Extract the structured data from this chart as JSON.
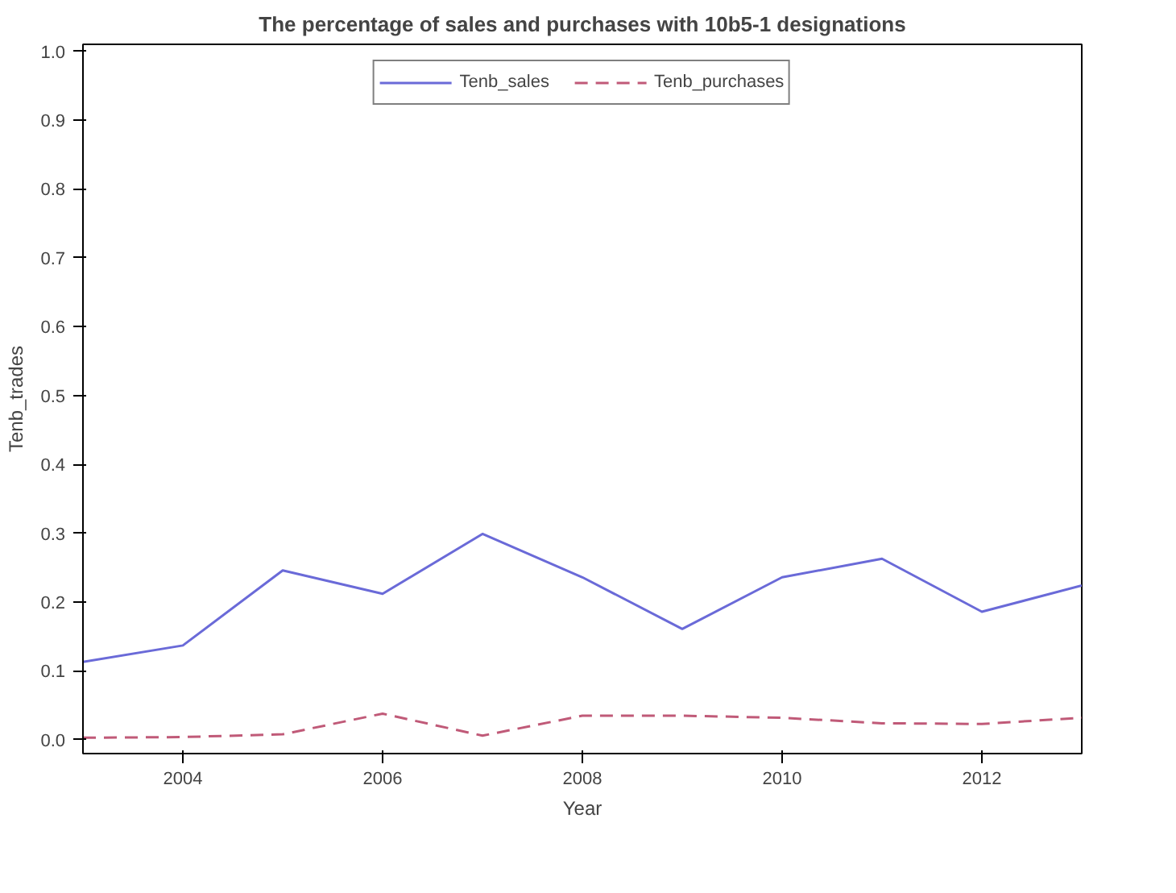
{
  "chart_data": {
    "type": "line",
    "title": "The percentage of sales and purchases with 10b5-1 designations",
    "xlabel": "Year",
    "ylabel": "Tenb_trades",
    "x": [
      2003,
      2004,
      2005,
      2006,
      2007,
      2008,
      2009,
      2010,
      2011,
      2012,
      2013
    ],
    "series": [
      {
        "name": "Tenb_sales",
        "color": "#6a6ad8",
        "line_style": "solid",
        "values": [
          0.113,
          0.137,
          0.246,
          0.212,
          0.299,
          0.236,
          0.161,
          0.236,
          0.263,
          0.186,
          0.224
        ]
      },
      {
        "name": "Tenb_purchases",
        "color": "#c05a78",
        "line_style": "dashed",
        "values": [
          0.003,
          0.004,
          0.008,
          0.038,
          0.006,
          0.035,
          0.035,
          0.032,
          0.024,
          0.023,
          0.032
        ]
      }
    ],
    "xlim": [
      2003,
      2013
    ],
    "xticks": [
      2004,
      2006,
      2008,
      2010,
      2012
    ],
    "ylim": [
      -0.02,
      1.01
    ],
    "yticks": [
      {
        "value": 0,
        "label": "0.0"
      },
      {
        "value": 0.1,
        "label": "0.1"
      },
      {
        "value": 0.2,
        "label": "0.2"
      },
      {
        "value": 0.3,
        "label": "0.3"
      },
      {
        "value": 0.4,
        "label": "0.4"
      },
      {
        "value": 0.5,
        "label": "0.5"
      },
      {
        "value": 0.6,
        "label": "0.6"
      },
      {
        "value": 0.7,
        "label": "0.7"
      },
      {
        "value": 0.8,
        "label": "0.8"
      },
      {
        "value": 0.9,
        "label": "0.9"
      },
      {
        "value": 1,
        "label": "1.0"
      }
    ],
    "grid": false,
    "legend": "top",
    "marker": "none"
  }
}
